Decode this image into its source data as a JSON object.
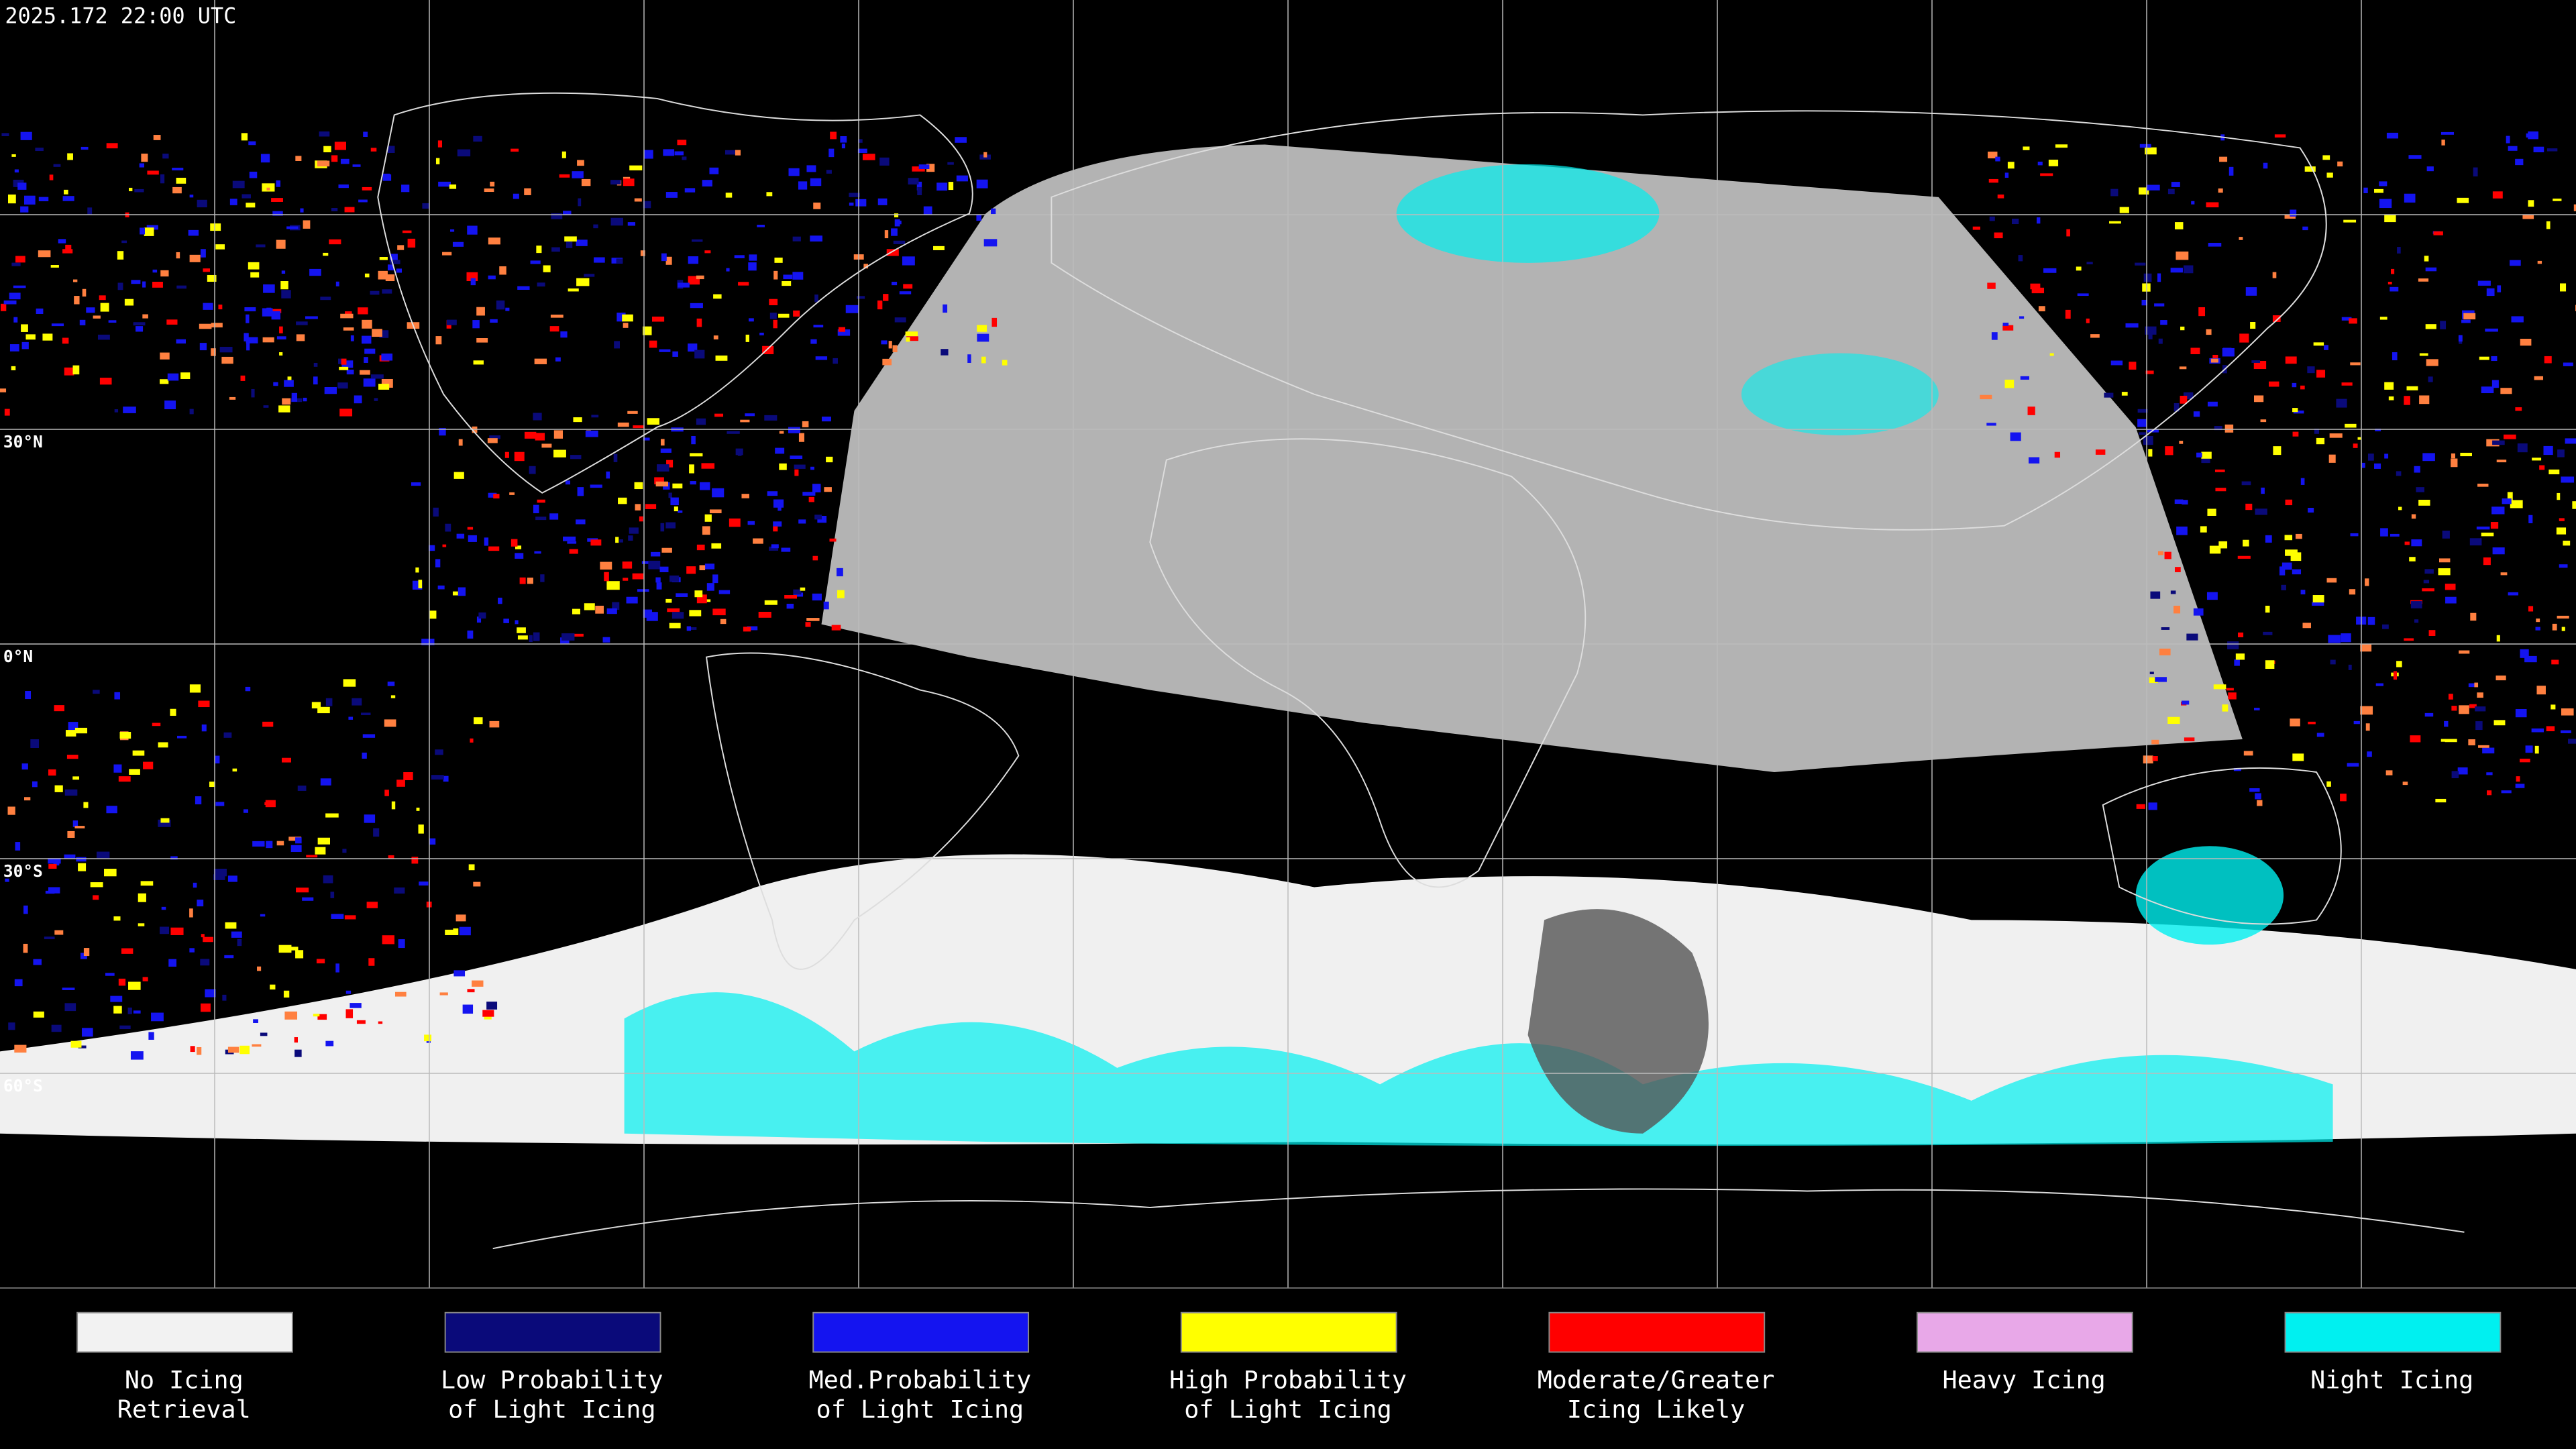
{
  "header": {
    "timestamp": "2025.172 22:00 UTC"
  },
  "latitude_labels": [
    {
      "value": 30,
      "label": "30°N"
    },
    {
      "value": 0,
      "label": "0°N"
    },
    {
      "value": -30,
      "label": "30°S"
    },
    {
      "value": -60,
      "label": "60°S"
    }
  ],
  "legend": [
    {
      "lines": [
        "No Icing",
        "Retrieval"
      ],
      "color": "#f2f2f2"
    },
    {
      "lines": [
        "Low Probability",
        "of Light Icing"
      ],
      "color": "#0a0a7a"
    },
    {
      "lines": [
        "Med.Probability",
        "of Light Icing"
      ],
      "color": "#1414f0"
    },
    {
      "lines": [
        "High Probability",
        "of Light Icing"
      ],
      "color": "#ffff00"
    },
    {
      "lines": [
        "Moderate/Greater",
        "Icing Likely"
      ],
      "color": "#ff0000"
    },
    {
      "lines": [
        "Heavy Icing"
      ],
      "color": "#e8a8e8"
    },
    {
      "lines": [
        "Night Icing"
      ],
      "color": "#00f0f0"
    }
  ]
}
